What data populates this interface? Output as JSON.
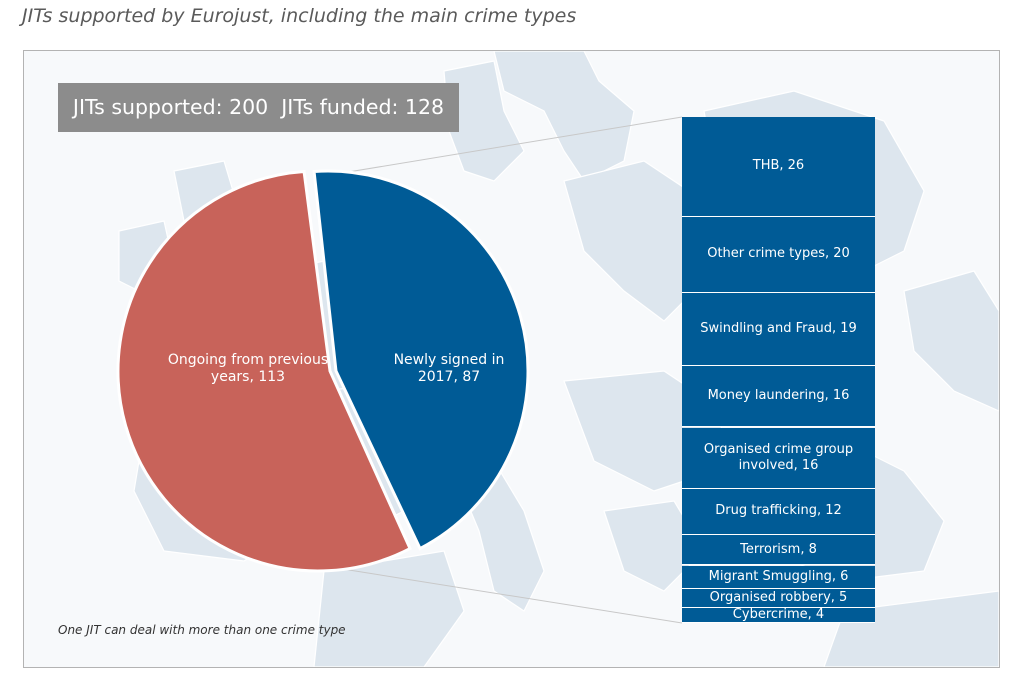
{
  "title": "JITs supported by Eurojust, including the main crime types",
  "totals_text": "JITs supported: 200  JITs funded: 128",
  "footnote": "One JIT can deal with more than one crime type",
  "colors": {
    "ongoing": "#c8635a",
    "newly_signed": "#005b96",
    "totals_box": "#8c8c8c",
    "map_land": "#dde6ee"
  },
  "chart_data": [
    {
      "type": "pie",
      "slices": [
        {
          "label": "Ongoing from previous years, 113",
          "value": 113
        },
        {
          "label": "Newly signed in 2017, 87",
          "value": 87
        }
      ]
    },
    {
      "type": "bar",
      "stacked": true,
      "categories": [
        "THB",
        "Other crime types",
        "Swindling and Fraud",
        "Money laundering",
        "Organised crime group involved",
        "Drug trafficking",
        "Terrorism",
        "Migrant Smuggling",
        "Organised robbery",
        "Cybercrime"
      ],
      "values": [
        26,
        20,
        19,
        16,
        16,
        12,
        8,
        6,
        5,
        4
      ],
      "labels": [
        "THB, 26",
        "Other crime types, 20",
        "Swindling and Fraud, 19",
        "Money laundering, 16",
        "Organised crime group involved, 16",
        "Drug trafficking, 12",
        "Terrorism, 8",
        "Migrant Smuggling, 6",
        "Organised robbery, 5",
        "Cybercrime, 4"
      ]
    }
  ]
}
